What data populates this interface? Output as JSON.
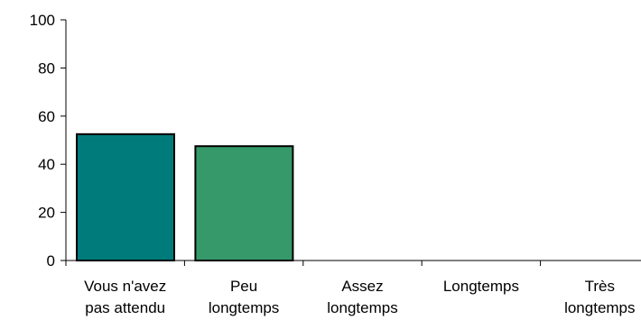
{
  "chart_data": {
    "type": "bar",
    "categories": [
      [
        "Vous n'avez",
        "pas attendu"
      ],
      [
        "Peu",
        "longtemps"
      ],
      [
        "Assez",
        "longtemps"
      ],
      [
        "Longtemps"
      ],
      [
        "Très",
        "longtemps"
      ]
    ],
    "values": [
      52.5,
      47.5,
      0,
      0,
      0
    ],
    "bar_colors": [
      "#007b7b",
      "#35996a"
    ],
    "ylim": [
      0,
      100
    ],
    "yticks": [
      0,
      20,
      40,
      60,
      80,
      100
    ],
    "ytick_labels": [
      "0",
      "20",
      "40",
      "60",
      "80",
      "100"
    ],
    "grid": false,
    "legend": "none",
    "title": "",
    "xlabel": "",
    "ylabel": ""
  }
}
